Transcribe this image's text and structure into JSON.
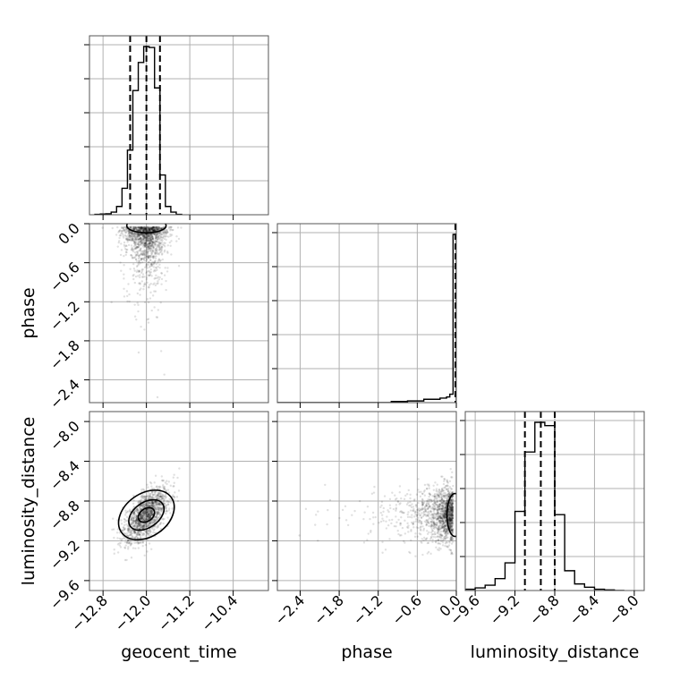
{
  "chart_data": {
    "type": "corner",
    "parameters": [
      {
        "name": "geocent_time",
        "xlabel": "geocent_time",
        "range": [
          -13.05,
          -9.75
        ],
        "ticks": [
          -12.8,
          -12.0,
          -11.2,
          -10.4
        ],
        "tick_labels": [
          "−12.8",
          "−12.0",
          "−11.2",
          "−10.4"
        ],
        "quantiles": [
          -12.3,
          -12.0,
          -11.75
        ]
      },
      {
        "name": "phase",
        "xlabel": "phase",
        "ylabel": "phase",
        "range": [
          -2.75,
          0.0
        ],
        "ticks": [
          -2.4,
          -1.8,
          -1.2,
          -0.6,
          0.0
        ],
        "tick_labels": [
          "−2.4",
          "−1.8",
          "−1.2",
          "−0.6",
          "0.0"
        ],
        "quantiles": [
          0.0
        ]
      },
      {
        "name": "luminosity_distance",
        "xlabel": "luminosity_distance",
        "ylabel": "luminosity_distance",
        "range": [
          -9.7,
          -7.9
        ],
        "ticks": [
          -9.6,
          -9.2,
          -8.8,
          -8.4,
          -8.0
        ],
        "tick_labels": [
          "−9.6",
          "−9.2",
          "−8.8",
          "−8.4",
          "−8.0"
        ],
        "quantiles": [
          -9.1,
          -8.94,
          -8.8
        ]
      }
    ],
    "histograms": [
      {
        "param": "geocent_time",
        "bins": [
          -12.95,
          -12.85,
          -12.75,
          -12.65,
          -12.55,
          -12.45,
          -12.35,
          -12.25,
          -12.15,
          -12.05,
          -11.95,
          -11.85,
          -11.75,
          -11.65,
          -11.55,
          -11.45,
          -11.35
        ],
        "counts": [
          1,
          2,
          3,
          8,
          25,
          80,
          195,
          375,
          460,
          508,
          505,
          383,
          120,
          25,
          8,
          1
        ]
      },
      {
        "param": "phase",
        "bins": [
          -2.75,
          -2.5,
          -2.25,
          -2.0,
          -1.75,
          -1.5,
          -1.25,
          -1.0,
          -0.75,
          -0.5,
          -0.25,
          -0.15,
          -0.1,
          -0.05,
          0.0
        ],
        "counts": [
          0,
          0,
          0,
          0,
          0,
          0,
          0,
          2,
          3,
          6,
          8,
          10,
          15,
          300
        ]
      },
      {
        "param": "luminosity_distance",
        "bins": [
          -9.7,
          -9.6,
          -9.5,
          -9.4,
          -9.3,
          -9.2,
          -9.1,
          -9.0,
          -8.9,
          -8.8,
          -8.7,
          -8.6,
          -8.5,
          -8.4,
          -8.3,
          -8.2,
          -8.1
        ],
        "counts": [
          2,
          4,
          8,
          18,
          42,
          120,
          210,
          255,
          250,
          115,
          30,
          10,
          5,
          2,
          1,
          0
        ]
      }
    ],
    "scatter_pairs": [
      {
        "x": "geocent_time",
        "y": "phase",
        "x_mean": -12.0,
        "x_sd": 0.2,
        "y_peak": -0.05,
        "y_tail_scale": 0.3
      },
      {
        "x": "geocent_time",
        "y": "luminosity_distance",
        "x_mean": -12.0,
        "x_sd": 0.2,
        "y_mean": -8.94,
        "y_sd": 0.14,
        "correlation": 0.6
      },
      {
        "x": "phase",
        "y": "luminosity_distance",
        "x_peak": -0.05,
        "x_tail_scale": 0.3,
        "y_mean": -8.94,
        "y_sd": 0.14
      }
    ]
  }
}
